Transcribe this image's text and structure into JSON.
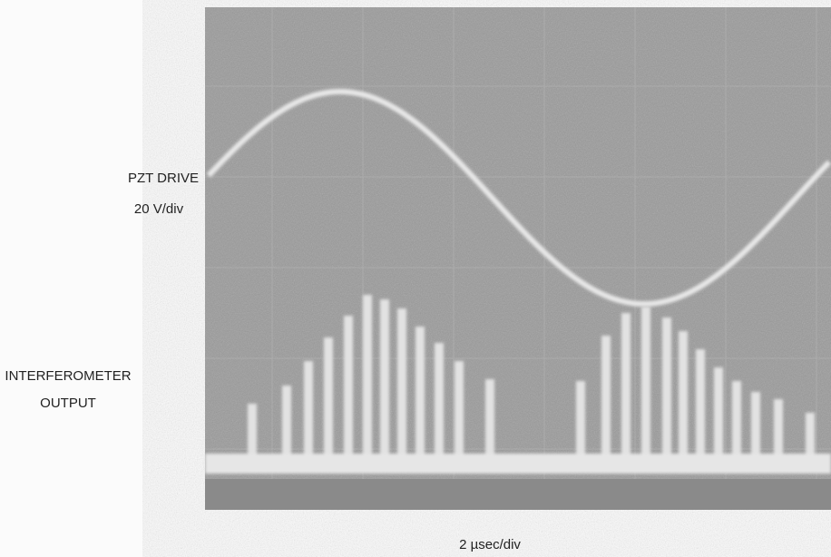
{
  "labels": {
    "pzt_drive": "PZT DRIVE",
    "pzt_scale": "20 V/div",
    "interferometer_line1": "INTERFEROMETER",
    "interferometer_line2": "OUTPUT",
    "time_scale": "2 µsec/div"
  }
}
